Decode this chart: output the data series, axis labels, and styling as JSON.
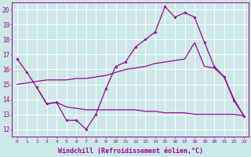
{
  "background_color": "#cce8e8",
  "grid_color": "#ffffff",
  "line_color": "#990099",
  "xlabel": "Windchill (Refroidissement éolien,°C)",
  "xlabel_fontsize": 6.0,
  "ylabel_ticks": [
    12,
    13,
    14,
    15,
    16,
    17,
    18,
    19,
    20
  ],
  "xlabel_ticks": [
    0,
    1,
    2,
    3,
    4,
    5,
    6,
    7,
    8,
    9,
    10,
    11,
    12,
    13,
    14,
    15,
    16,
    17,
    18,
    19,
    20,
    21,
    22,
    23
  ],
  "xlim": [
    -0.5,
    23.5
  ],
  "ylim": [
    11.5,
    20.5
  ],
  "curve1_x": [
    0,
    1,
    2,
    3,
    4,
    5,
    6,
    7,
    8,
    9,
    10,
    11,
    12,
    13,
    14,
    15,
    16,
    17,
    18,
    19,
    20,
    21,
    22,
    23
  ],
  "curve1_y": [
    16.7,
    15.8,
    14.8,
    13.7,
    13.8,
    12.6,
    12.6,
    12.0,
    13.0,
    14.7,
    16.2,
    16.5,
    17.5,
    18.0,
    18.5,
    20.2,
    19.5,
    19.8,
    19.5,
    17.8,
    16.2,
    15.5,
    13.9,
    12.9
  ],
  "curve2_x": [
    0,
    1,
    2,
    3,
    4,
    5,
    6,
    7,
    8,
    9,
    10,
    11,
    12,
    13,
    14,
    15,
    16,
    17,
    18,
    19,
    20,
    21,
    22,
    23
  ],
  "curve2_y": [
    15.0,
    15.1,
    15.2,
    15.3,
    15.3,
    15.3,
    15.4,
    15.4,
    15.5,
    15.6,
    15.8,
    16.0,
    16.1,
    16.2,
    16.4,
    16.5,
    16.6,
    16.7,
    17.8,
    16.2,
    16.1,
    15.5,
    14.0,
    12.9
  ],
  "curve3_x": [
    2,
    3,
    4,
    5,
    6,
    7,
    8,
    9,
    10,
    11,
    12,
    13,
    14,
    15,
    16,
    17,
    18,
    19,
    20,
    21,
    22,
    23
  ],
  "curve3_y": [
    14.8,
    13.7,
    13.8,
    13.5,
    13.4,
    13.3,
    13.3,
    13.3,
    13.3,
    13.3,
    13.3,
    13.2,
    13.2,
    13.1,
    13.1,
    13.1,
    13.0,
    13.0,
    13.0,
    13.0,
    13.0,
    12.9
  ]
}
